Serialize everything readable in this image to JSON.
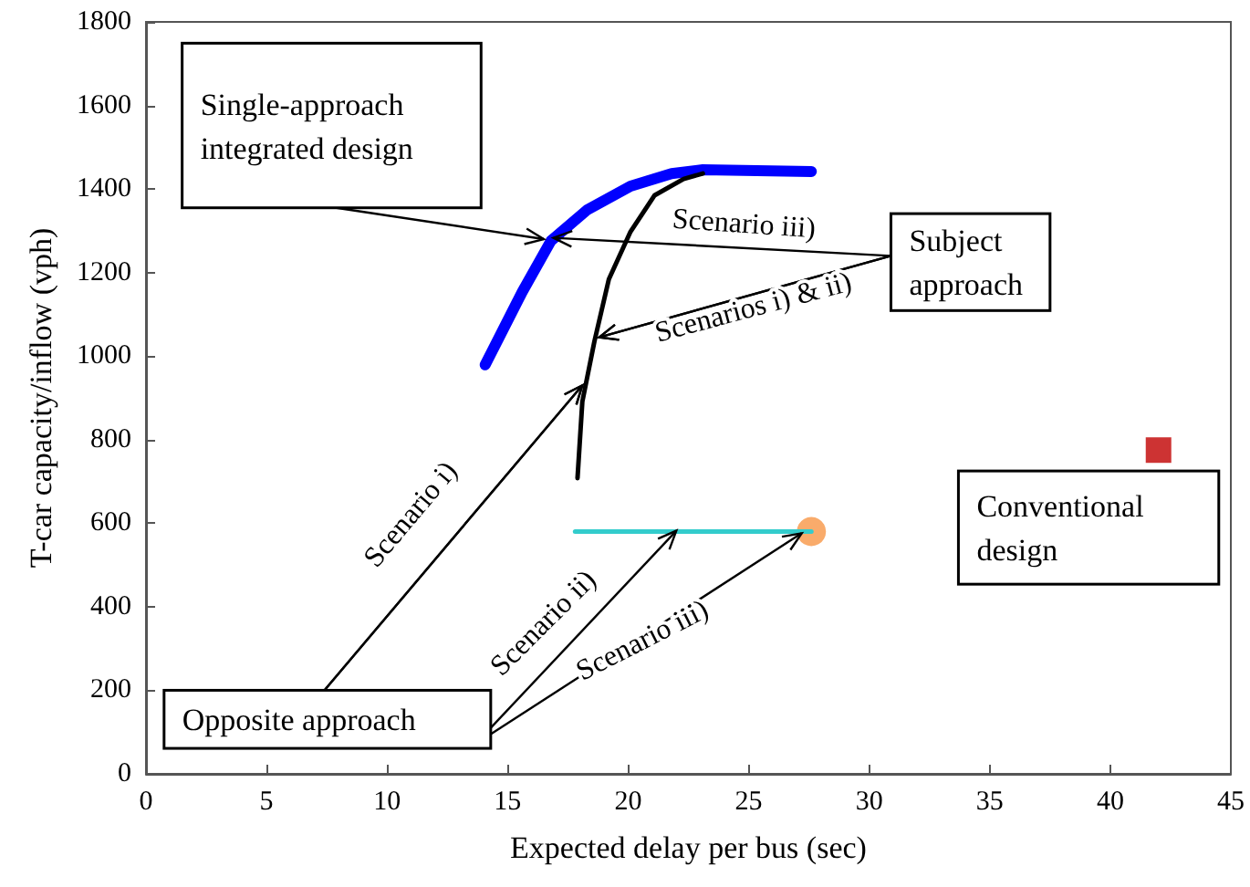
{
  "chart_data": {
    "type": "line",
    "xlabel": "Expected delay per bus (sec)",
    "ylabel": "T-car capacity/inflow (vph)",
    "xlim": [
      0,
      45
    ],
    "xticks": [
      0,
      5,
      10,
      15,
      20,
      25,
      30,
      35,
      40,
      45
    ],
    "ylim": [
      0,
      1800
    ],
    "yticks": [
      0,
      200,
      400,
      600,
      800,
      1000,
      1200,
      1400,
      1600,
      1800
    ],
    "series": [
      {
        "color": "#0000ff",
        "marker": "none",
        "x": [
          14.07,
          15.6,
          16.8,
          18.3,
          20.1,
          21.8,
          23.1,
          27.6
        ],
        "values": [
          979,
          1153,
          1276,
          1350,
          1407,
          1437,
          1446,
          1442
        ]
      },
      {
        "color": "#000000",
        "marker": "none",
        "x": [
          17.9,
          18.1,
          18.6,
          19.2,
          20.1,
          21.1,
          22.3,
          23.1
        ],
        "values": [
          708,
          891,
          1035,
          1184,
          1298,
          1385,
          1424,
          1437
        ]
      },
      {
        "color": "#33cccc",
        "marker": "none",
        "x": [
          17.8,
          27.6
        ],
        "values": [
          580,
          580
        ]
      },
      {
        "type": "scatter",
        "color": "#f79646",
        "marker": "circle",
        "x": [
          27.6
        ],
        "values": [
          580
        ]
      },
      {
        "type": "scatter",
        "color": "#c00000",
        "marker": "square",
        "x": [
          42.0
        ],
        "values": [
          775
        ]
      }
    ],
    "annotations": [
      "Single-approach integrated design",
      {
        "text": "Subject approach",
        "x": 18.8,
        "y": 1045
      },
      "Scenario iii)",
      {
        "text": "Scenarios i) & ii)",
        "x": 18.8,
        "y": 1045
      },
      "Conventional design",
      {
        "text": "Opposite approach",
        "x": 18.1,
        "y": 930
      },
      "Scenario i)",
      {
        "text": "Scenario ii)",
        "x": 22.0,
        "y": 582
      },
      "Scenario iii)"
    ]
  }
}
